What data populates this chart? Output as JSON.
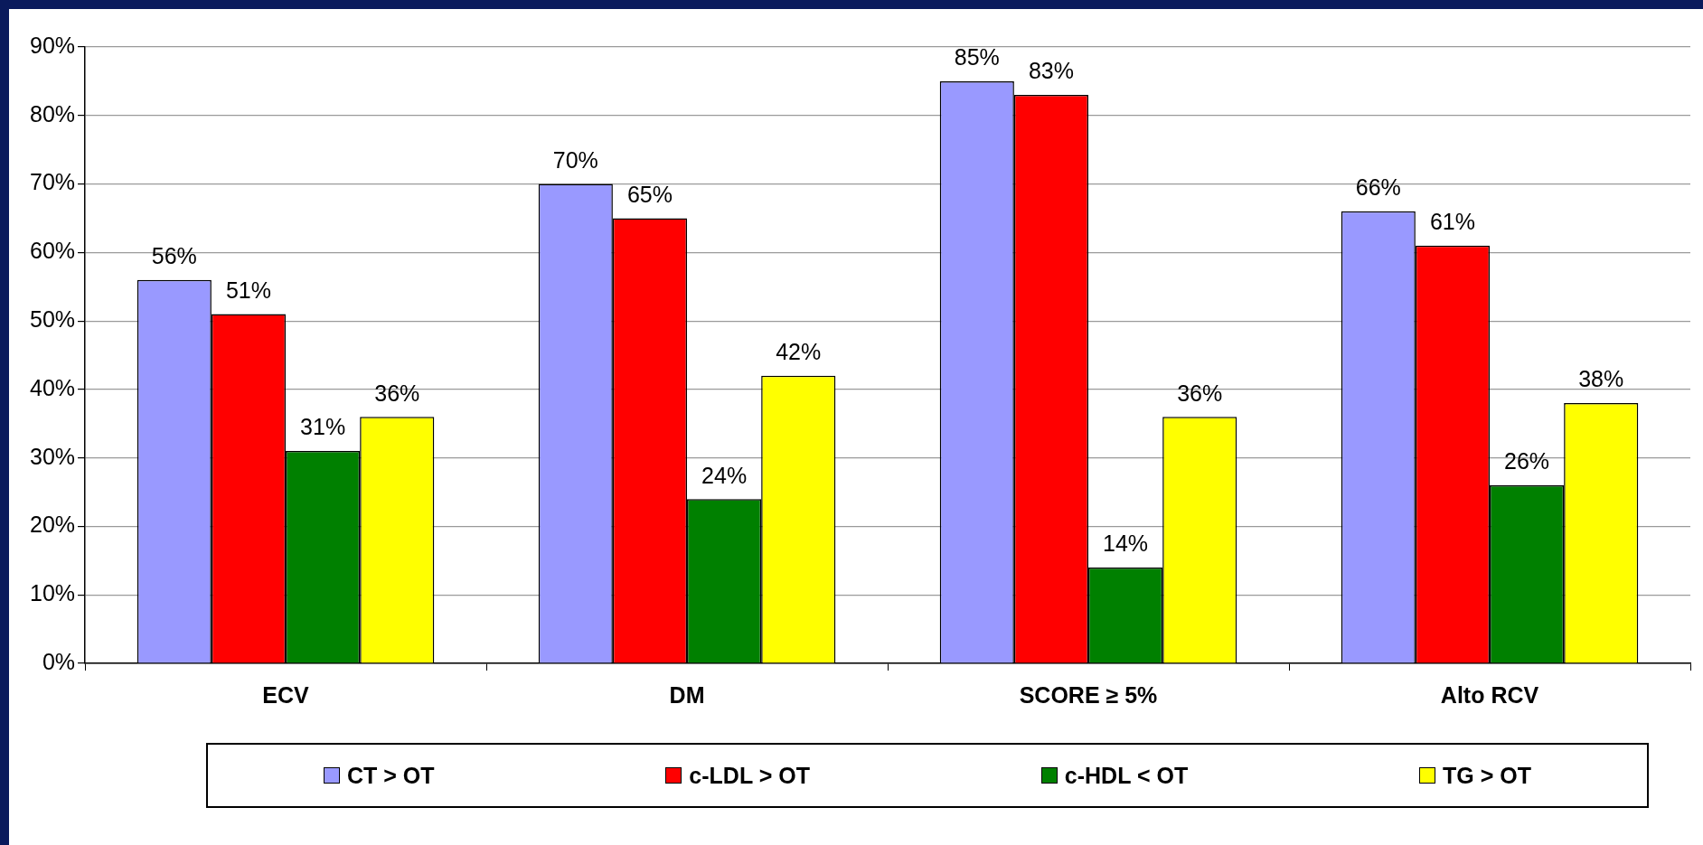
{
  "chart_data": {
    "type": "bar",
    "categories": [
      "ECV",
      "DM",
      "SCORE ≥ 5%",
      "Alto RCV"
    ],
    "series": [
      {
        "name": "CT > OT",
        "color": "#9999ff",
        "values": [
          56,
          70,
          85,
          66
        ],
        "value_labels": [
          "56%",
          "70%",
          "85%",
          "66%"
        ]
      },
      {
        "name": "c-LDL > OT",
        "color": "#ff0000",
        "values": [
          51,
          65,
          83,
          61
        ],
        "value_labels": [
          "51%",
          "65%",
          "83%",
          "61%"
        ]
      },
      {
        "name": "c-HDL < OT",
        "color": "#008000",
        "values": [
          31,
          24,
          14,
          26
        ],
        "value_labels": [
          "31%",
          "24%",
          "14%",
          "26%"
        ]
      },
      {
        "name": "TG > OT",
        "color": "#ffff00",
        "values": [
          36,
          42,
          36,
          38
        ],
        "value_labels": [
          "36%",
          "42%",
          "36%",
          "38%"
        ]
      }
    ],
    "ylim": [
      0,
      90
    ],
    "yticks": [
      {
        "value": 0,
        "label": "0%"
      },
      {
        "value": 10,
        "label": "10%"
      },
      {
        "value": 20,
        "label": "20%"
      },
      {
        "value": 30,
        "label": "30%"
      },
      {
        "value": 40,
        "label": "40%"
      },
      {
        "value": 50,
        "label": "50%"
      },
      {
        "value": 60,
        "label": "60%"
      },
      {
        "value": 70,
        "label": "70%"
      },
      {
        "value": 80,
        "label": "80%"
      },
      {
        "value": 90,
        "label": "90%"
      }
    ],
    "grid": "y",
    "legend": "bottom"
  }
}
